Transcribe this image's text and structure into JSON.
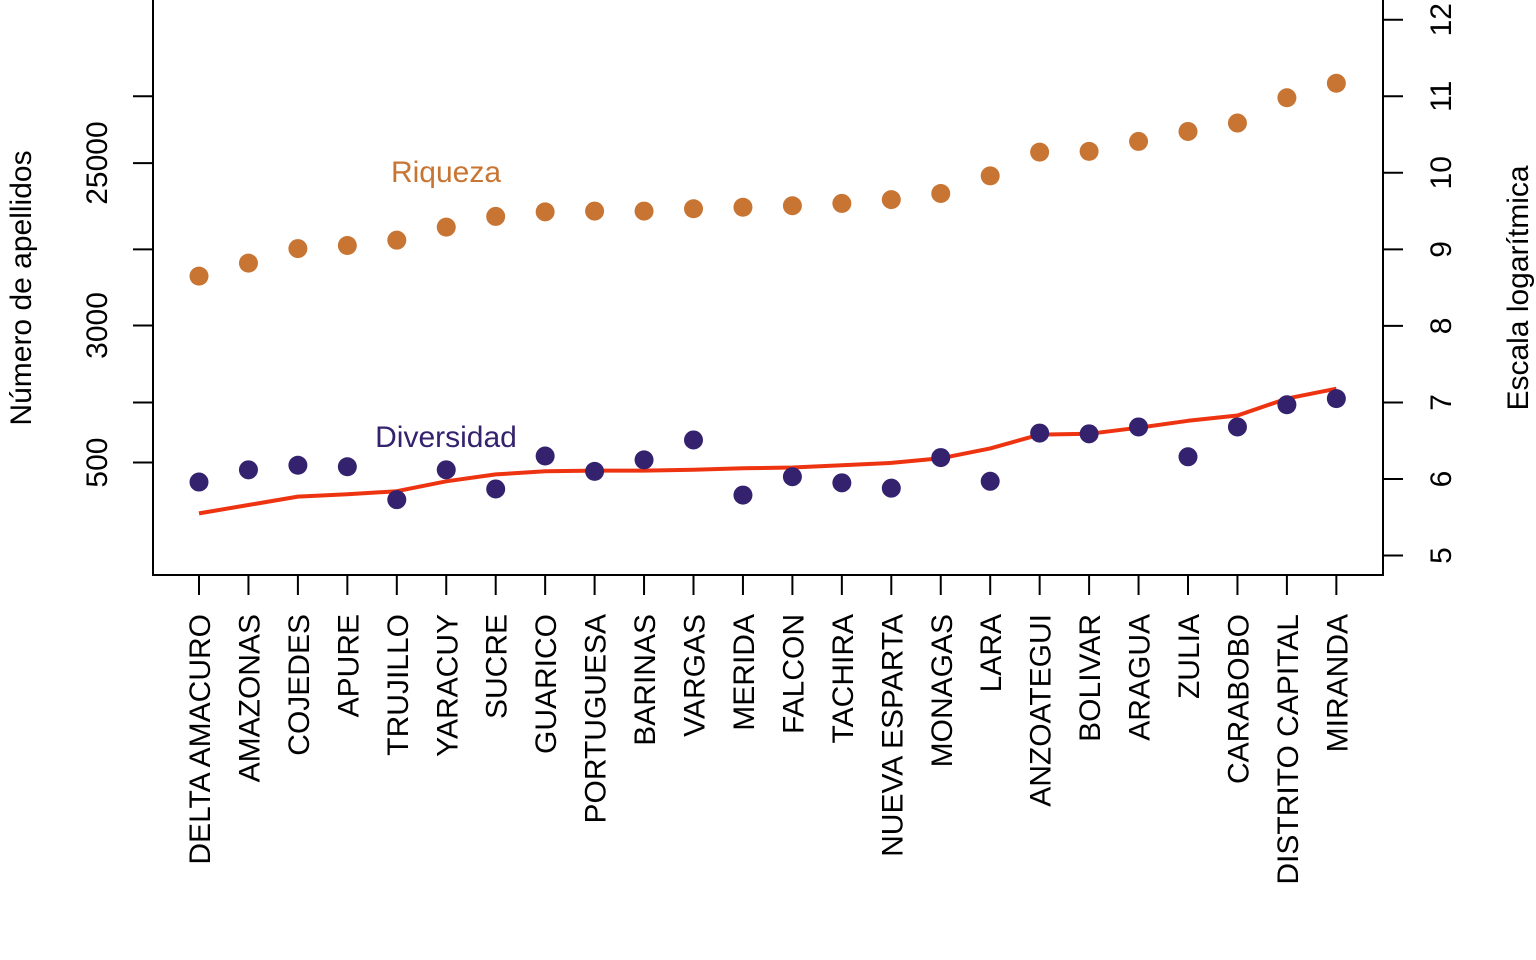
{
  "chart_data": {
    "type": "scatter",
    "categories": [
      "DELTA AMACURO",
      "AMAZONAS",
      "COJEDES",
      "APURE",
      "TRUJILLO",
      "YARACUY",
      "SUCRE",
      "GUARICO",
      "PORTUGUESA",
      "BARINAS",
      "VARGAS",
      "MERIDA",
      "FALCON",
      "TACHIRA",
      "NUEVA ESPARTA",
      "MONAGAS",
      "LARA",
      "ANZOATEGUI",
      "BOLIVAR",
      "ARAGUA",
      "ZULIA",
      "CARABOBO",
      "DISTRITO CAPITAL",
      "MIRANDA"
    ],
    "ylabel": "Número de apellidos",
    "y2label": "Escala logarítmica",
    "y2lim": [
      5,
      12
    ],
    "y_ticks": [
      {
        "label": "500",
        "log": 6.215
      },
      {
        "label": "3000",
        "log": 8.006
      },
      {
        "label": "25000",
        "log": 10.127
      }
    ],
    "y_minor_ticks_log": [
      7.0,
      9.0,
      11.0
    ],
    "y2_ticks": [
      "5",
      "6",
      "7",
      "8",
      "9",
      "10",
      "11",
      "12"
    ],
    "series": [
      {
        "name": "Riqueza",
        "kind": "points",
        "color": "#C87533",
        "values": [
          8.65,
          8.82,
          9.01,
          9.05,
          9.12,
          9.29,
          9.43,
          9.49,
          9.5,
          9.5,
          9.53,
          9.55,
          9.57,
          9.6,
          9.65,
          9.73,
          9.96,
          10.27,
          10.28,
          10.41,
          10.54,
          10.65,
          10.98,
          11.17
        ]
      },
      {
        "name": "Diversidad",
        "kind": "points",
        "color": "#34226E",
        "values": [
          5.96,
          6.12,
          6.18,
          6.16,
          5.73,
          6.12,
          5.87,
          6.3,
          6.1,
          6.25,
          6.51,
          5.79,
          6.03,
          5.95,
          5.88,
          6.28,
          5.97,
          6.6,
          6.59,
          6.68,
          6.29,
          6.68,
          6.97,
          7.05
        ]
      },
      {
        "kind": "line",
        "color": "#EE3311",
        "values": [
          5.55,
          5.66,
          5.77,
          5.8,
          5.84,
          5.97,
          6.06,
          6.1,
          6.11,
          6.11,
          6.12,
          6.14,
          6.15,
          6.18,
          6.21,
          6.27,
          6.4,
          6.58,
          6.59,
          6.67,
          6.76,
          6.83,
          7.05,
          7.18
        ]
      }
    ]
  }
}
